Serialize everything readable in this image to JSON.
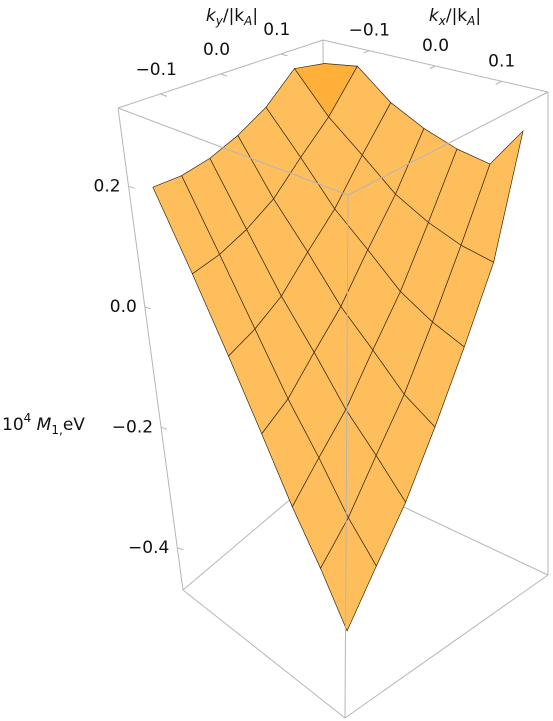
{
  "chart_data": {
    "type": "surface3d",
    "xlabel": [
      "k",
      "x",
      "/|k",
      "A",
      "|"
    ],
    "ylabel": [
      "k",
      "y",
      "/|k",
      "A",
      "|"
    ],
    "zlabel": [
      "10",
      "4",
      " M",
      "1,",
      "eV"
    ],
    "color": "#f5a623",
    "x": [
      -0.15,
      -0.1,
      -0.05,
      0,
      0.05,
      0.1,
      0.15
    ],
    "y": [
      -0.15,
      -0.1,
      -0.05,
      0,
      0.05,
      0.1,
      0.15
    ],
    "z": [
      [
        0.2,
        0.08,
        -0.03,
        -0.13,
        -0.22,
        -0.29,
        -0.36
      ],
      [
        0.2,
        0.09,
        -0.01,
        -0.1,
        -0.17,
        -0.24,
        -0.29
      ],
      [
        0.21,
        0.11,
        0.02,
        -0.05,
        -0.12,
        -0.17,
        -0.22
      ],
      [
        0.23,
        0.14,
        0.07,
        0.0,
        -0.05,
        -0.1,
        -0.13
      ],
      [
        0.26,
        0.19,
        0.12,
        0.07,
        0.02,
        -0.01,
        -0.03
      ],
      [
        0.31,
        0.24,
        0.19,
        0.14,
        0.11,
        0.09,
        0.08
      ],
      [
        0.3,
        0.31,
        0.26,
        0.23,
        0.21,
        0.2,
        0.27
      ]
    ],
    "xlim": [
      -0.17,
      0.17
    ],
    "ylim": [
      -0.17,
      0.17
    ],
    "zlim": [
      -0.47,
      0.33
    ],
    "xticks": [
      {
        "value": -0.1,
        "label": "−0.1"
      },
      {
        "value": 0,
        "label": "0.0"
      },
      0.1
    ],
    "yticks": [
      {
        "value": -0.1,
        "label": "−0.1"
      },
      {
        "value": 0,
        "label": "0.0"
      },
      0.1
    ],
    "zticks": [
      0.2,
      {
        "value": 0,
        "label": "0.0"
      },
      {
        "value": -0.2,
        "label": "−0.2"
      },
      {
        "value": -0.4,
        "label": "−0.4"
      }
    ]
  }
}
